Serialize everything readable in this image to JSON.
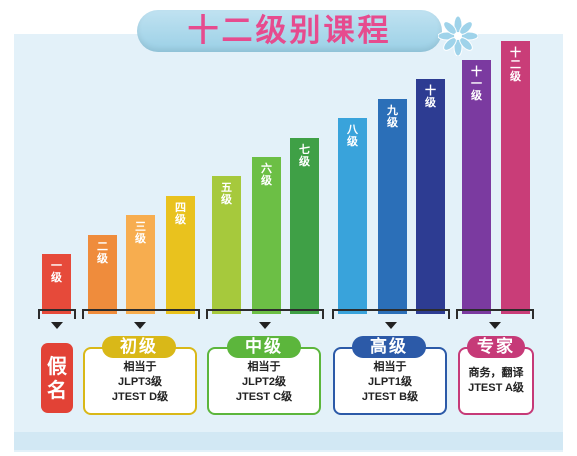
{
  "title": "十二级别课程",
  "colors": {
    "title_text": "#e64b8e",
    "beginner": "#d9b818",
    "intermediate": "#5cb63c",
    "advanced": "#2c5aa8",
    "expert": "#c63a78",
    "kana": "#e24236"
  },
  "bars": [
    {
      "label": [
        "一",
        "级"
      ],
      "level": 1,
      "color": "#e64a3a"
    },
    {
      "label": [
        "二",
        "级"
      ],
      "level": 2,
      "color": "#ef8c3c"
    },
    {
      "label": [
        "三",
        "级"
      ],
      "level": 3,
      "color": "#f7ad4f"
    },
    {
      "label": [
        "四",
        "级"
      ],
      "level": 4,
      "color": "#e9c21e"
    },
    {
      "label": [
        "五",
        "级"
      ],
      "level": 5,
      "color": "#a6c93c"
    },
    {
      "label": [
        "六",
        "级"
      ],
      "level": 6,
      "color": "#6cbf45"
    },
    {
      "label": [
        "七",
        "级"
      ],
      "level": 7,
      "color": "#3fa046"
    },
    {
      "label": [
        "八",
        "级"
      ],
      "level": 8,
      "color": "#39a3db"
    },
    {
      "label": [
        "九",
        "级"
      ],
      "level": 9,
      "color": "#2b6fb8"
    },
    {
      "label": [
        "十",
        "级"
      ],
      "level": 10,
      "color": "#2d3c92"
    },
    {
      "label": [
        "十",
        "一",
        "级"
      ],
      "level": 11,
      "color": "#7b3aa0"
    },
    {
      "label": [
        "十",
        "二",
        "级"
      ],
      "level": 12,
      "color": "#c93d78"
    }
  ],
  "kana": {
    "line1": "假",
    "line2": "名"
  },
  "groups": [
    {
      "tag": "初级",
      "color": "#d9b818",
      "lines": [
        "相当于",
        "JLPT3级",
        "JTEST D级"
      ]
    },
    {
      "tag": "中级",
      "color": "#5cb63c",
      "lines": [
        "相当于",
        "JLPT2级",
        "JTEST C级"
      ]
    },
    {
      "tag": "高级",
      "color": "#2c5aa8",
      "lines": [
        "相当于",
        "JLPT1级",
        "JTEST B级"
      ]
    },
    {
      "tag": "专家",
      "color": "#c63a78",
      "lines": [
        "商务，翻译",
        "JTEST A级"
      ]
    }
  ]
}
